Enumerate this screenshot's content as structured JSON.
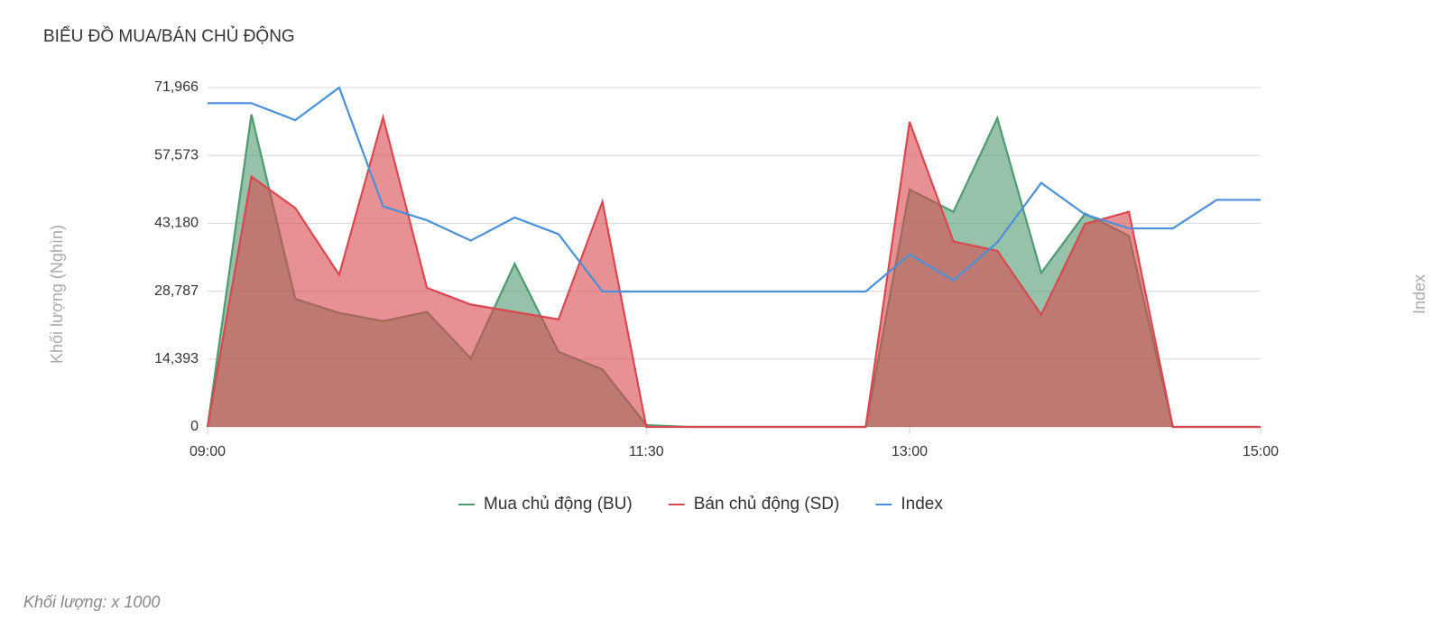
{
  "chart_data": {
    "type": "area",
    "title": "BIỂU ĐỒ MUA/BÁN CHỦ ĐỘNG",
    "y_label": "Khối lượng (Nghìn)",
    "y2_label": "Index",
    "footnote": "Khối lượng: x 1000",
    "categories": [
      "09:00",
      null,
      null,
      null,
      null,
      null,
      null,
      null,
      null,
      null,
      "11:30",
      null,
      null,
      null,
      null,
      null,
      "13:00",
      null,
      null,
      null,
      null,
      null,
      null,
      null,
      "15:00"
    ],
    "ylim": [
      0,
      71966
    ],
    "yticks": [
      0,
      {
        "value": 14393,
        "label": "14,393"
      },
      {
        "value": 28787,
        "label": "28,787"
      },
      {
        "value": 43180,
        "label": "43,180"
      },
      {
        "value": 57573,
        "label": "57,573"
      },
      {
        "value": 71966,
        "label": "71,966"
      }
    ],
    "y2lim": [
      0,
      100
    ],
    "grid": true,
    "legend": "bottom",
    "series": [
      {
        "name": "Mua chủ động (BU)",
        "color": "#4f9a6f",
        "values": [
          0,
          66264,
          27135,
          24186,
          22416,
          24382,
          14551,
          34607,
          15927,
          12191,
          393,
          0,
          0,
          0,
          0,
          0,
          50337,
          45618,
          65478,
          32641,
          45225,
          40506,
          0,
          0,
          0
        ]
      },
      {
        "name": "Bán chủ động (SD)",
        "color": "#d9474f",
        "values": [
          0,
          53090,
          46405,
          32247,
          65674,
          29495,
          25955,
          24382,
          22809,
          47781,
          0,
          0,
          0,
          0,
          0,
          0,
          64691,
          39326,
          37360,
          23792,
          43062,
          45618,
          0,
          0,
          0
        ]
      },
      {
        "name": "Index",
        "color": "#4a90d9",
        "axis": "y2",
        "values": [
          95.4,
          95.4,
          90.4,
          100,
          65.0,
          60.9,
          54.9,
          61.7,
          56.8,
          39.9,
          39.9,
          39.9,
          39.9,
          39.9,
          39.9,
          39.9,
          50.8,
          43.2,
          54.4,
          71.9,
          62.6,
          58.5,
          58.5,
          66.9,
          66.9
        ]
      }
    ]
  }
}
